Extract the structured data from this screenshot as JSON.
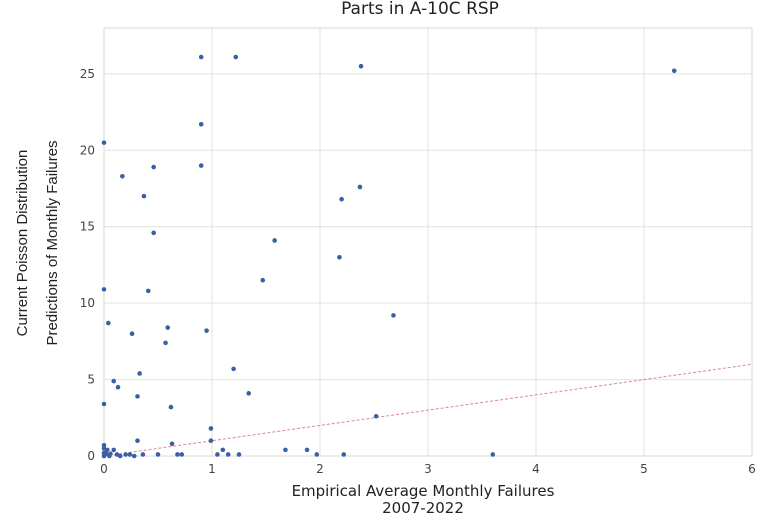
{
  "chart_data": {
    "type": "scatter",
    "title": "Parts in A-10C RSP",
    "xlabel_lines": [
      "Empirical Average Monthly Failures",
      "2007-2022"
    ],
    "ylabel_lines": [
      "Current Poisson Distribution",
      "Predictions of Monthly Failures"
    ],
    "xlim": [
      0,
      6
    ],
    "ylim": [
      0,
      28
    ],
    "xticks": [
      0,
      1,
      2,
      3,
      4,
      5,
      6
    ],
    "yticks": [
      0,
      5,
      10,
      15,
      20,
      25
    ],
    "grid": true,
    "reference_line": {
      "x": [
        0,
        6
      ],
      "y": [
        0,
        6
      ],
      "style": "dashed",
      "color": "#d98a8a"
    },
    "point_color": "#3a5fa6",
    "points": [
      [
        0.9,
        26.1
      ],
      [
        1.22,
        26.1
      ],
      [
        2.38,
        25.5
      ],
      [
        5.28,
        25.2
      ],
      [
        0.9,
        21.7
      ],
      [
        0.0,
        20.5
      ],
      [
        0.9,
        19.0
      ],
      [
        0.46,
        18.9
      ],
      [
        0.17,
        18.3
      ],
      [
        2.37,
        17.6
      ],
      [
        0.37,
        17.0
      ],
      [
        2.2,
        16.8
      ],
      [
        0.46,
        14.6
      ],
      [
        1.58,
        14.1
      ],
      [
        2.18,
        13.0
      ],
      [
        1.47,
        11.5
      ],
      [
        0.0,
        10.9
      ],
      [
        0.41,
        10.8
      ],
      [
        2.68,
        9.2
      ],
      [
        0.04,
        8.7
      ],
      [
        0.59,
        8.4
      ],
      [
        0.95,
        8.2
      ],
      [
        0.26,
        8.0
      ],
      [
        0.57,
        7.4
      ],
      [
        1.2,
        5.7
      ],
      [
        0.33,
        5.4
      ],
      [
        0.09,
        4.9
      ],
      [
        0.13,
        4.5
      ],
      [
        1.34,
        4.1
      ],
      [
        0.31,
        3.9
      ],
      [
        0.0,
        3.4
      ],
      [
        0.62,
        3.2
      ],
      [
        2.52,
        2.6
      ],
      [
        0.99,
        1.8
      ],
      [
        0.31,
        1.0
      ],
      [
        0.99,
        1.0
      ],
      [
        0.63,
        0.8
      ],
      [
        0.0,
        0.7
      ],
      [
        0.0,
        0.5
      ],
      [
        0.03,
        0.4
      ],
      [
        0.09,
        0.4
      ],
      [
        1.1,
        0.4
      ],
      [
        1.68,
        0.4
      ],
      [
        1.88,
        0.4
      ],
      [
        0.0,
        0.2
      ],
      [
        0.02,
        0.15
      ],
      [
        0.06,
        0.15
      ],
      [
        0.12,
        0.1
      ],
      [
        0.2,
        0.1
      ],
      [
        0.24,
        0.1
      ],
      [
        0.36,
        0.1
      ],
      [
        0.5,
        0.1
      ],
      [
        0.68,
        0.1
      ],
      [
        0.72,
        0.1
      ],
      [
        1.05,
        0.1
      ],
      [
        1.15,
        0.1
      ],
      [
        1.25,
        0.1
      ],
      [
        1.97,
        0.1
      ],
      [
        2.22,
        0.1
      ],
      [
        3.6,
        0.1
      ],
      [
        0.0,
        0.0
      ],
      [
        0.05,
        0.0
      ],
      [
        0.15,
        0.0
      ],
      [
        0.28,
        0.0
      ]
    ]
  }
}
